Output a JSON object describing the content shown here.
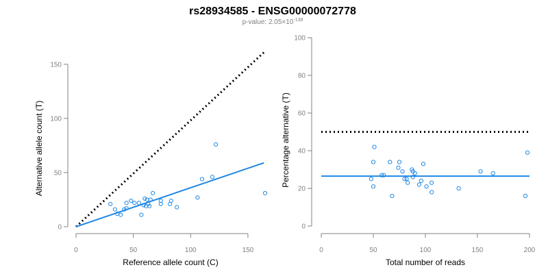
{
  "header": {
    "title": "rs28934585 - ENSG00000072778",
    "subtitle_prefix": "p-value: 2.05×10",
    "subtitle_exponent": "-138"
  },
  "chart_data": [
    {
      "type": "scatter",
      "xlabel": "Reference allele count (C)",
      "ylabel": "Alternative allele count (T)",
      "xlim": [
        0,
        165
      ],
      "ylim": [
        0,
        160
      ],
      "xticks": [
        0,
        50,
        100,
        150
      ],
      "yticks": [
        0,
        50,
        100,
        150
      ],
      "grid": false,
      "color": "#1E88E5",
      "points": [
        {
          "x": 30,
          "y": 21
        },
        {
          "x": 34,
          "y": 16
        },
        {
          "x": 36,
          "y": 12
        },
        {
          "x": 39,
          "y": 11
        },
        {
          "x": 42,
          "y": 16
        },
        {
          "x": 44,
          "y": 17
        },
        {
          "x": 44,
          "y": 22
        },
        {
          "x": 48,
          "y": 24
        },
        {
          "x": 51,
          "y": 22
        },
        {
          "x": 55,
          "y": 22
        },
        {
          "x": 57,
          "y": 11
        },
        {
          "x": 59,
          "y": 20
        },
        {
          "x": 60,
          "y": 26
        },
        {
          "x": 61,
          "y": 19
        },
        {
          "x": 62,
          "y": 25
        },
        {
          "x": 63,
          "y": 21
        },
        {
          "x": 64,
          "y": 19
        },
        {
          "x": 65,
          "y": 25
        },
        {
          "x": 67,
          "y": 31
        },
        {
          "x": 74,
          "y": 24
        },
        {
          "x": 74,
          "y": 21
        },
        {
          "x": 82,
          "y": 21
        },
        {
          "x": 83,
          "y": 24
        },
        {
          "x": 88,
          "y": 18
        },
        {
          "x": 106,
          "y": 27
        },
        {
          "x": 110,
          "y": 44
        },
        {
          "x": 119,
          "y": 46
        },
        {
          "x": 122,
          "y": 76
        },
        {
          "x": 165,
          "y": 31
        }
      ],
      "fit_line": {
        "x": [
          0,
          164
        ],
        "y": [
          0,
          59
        ]
      },
      "reference_line": {
        "x": [
          0,
          164
        ],
        "y": [
          0,
          161
        ]
      }
    },
    {
      "type": "scatter",
      "xlabel": "Total number of reads",
      "ylabel": "Percentage alternative (T)",
      "xlim": [
        0,
        200
      ],
      "ylim": [
        0,
        100
      ],
      "xticks": [
        0,
        50,
        100,
        150,
        200
      ],
      "yticks": [
        0,
        20,
        40,
        60,
        80,
        100
      ],
      "grid": false,
      "color": "#1E88E5",
      "points": [
        {
          "x": 48,
          "y": 25
        },
        {
          "x": 50,
          "y": 34
        },
        {
          "x": 50,
          "y": 21
        },
        {
          "x": 51,
          "y": 42
        },
        {
          "x": 58,
          "y": 27
        },
        {
          "x": 60,
          "y": 27
        },
        {
          "x": 66,
          "y": 34
        },
        {
          "x": 68,
          "y": 16
        },
        {
          "x": 74,
          "y": 31
        },
        {
          "x": 75,
          "y": 34
        },
        {
          "x": 78,
          "y": 29
        },
        {
          "x": 80,
          "y": 25
        },
        {
          "x": 82,
          "y": 25
        },
        {
          "x": 83,
          "y": 23
        },
        {
          "x": 87,
          "y": 30
        },
        {
          "x": 88,
          "y": 29
        },
        {
          "x": 88,
          "y": 26
        },
        {
          "x": 90,
          "y": 28
        },
        {
          "x": 94,
          "y": 22
        },
        {
          "x": 96,
          "y": 24
        },
        {
          "x": 98,
          "y": 33
        },
        {
          "x": 101,
          "y": 21
        },
        {
          "x": 106,
          "y": 23
        },
        {
          "x": 106,
          "y": 18
        },
        {
          "x": 132,
          "y": 20
        },
        {
          "x": 153,
          "y": 29
        },
        {
          "x": 165,
          "y": 28
        },
        {
          "x": 196,
          "y": 16
        },
        {
          "x": 198,
          "y": 39
        }
      ],
      "fit_line": {
        "x": [
          0,
          200
        ],
        "y": [
          26.5,
          26.5
        ]
      },
      "reference_line": {
        "x": [
          0,
          200
        ],
        "y": [
          50,
          50
        ]
      }
    }
  ]
}
